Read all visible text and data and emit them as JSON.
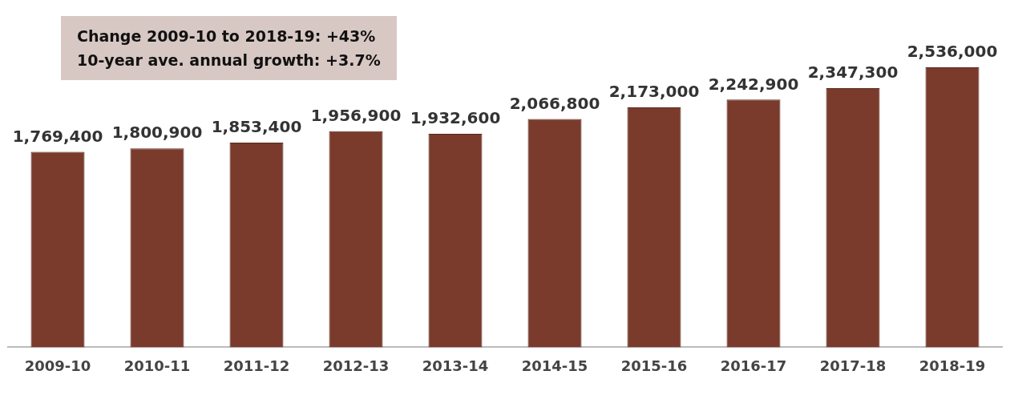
{
  "chart_data": {
    "type": "bar",
    "categories": [
      "2009-10",
      "2010-11",
      "2011-12",
      "2012-13",
      "2013-14",
      "2014-15",
      "2015-16",
      "2016-17",
      "2017-18",
      "2018-19"
    ],
    "values": [
      1769400,
      1800900,
      1853400,
      1956900,
      1932600,
      2066800,
      2173000,
      2242900,
      2347300,
      2536000
    ],
    "color": "#7a3b2c",
    "value_labels": [
      "1,769,400",
      "1,800,900",
      "1,853,400",
      "1,956,900",
      "1,932,600",
      "2,066,800",
      "2,173,000",
      "2,242,900",
      "2,347,300",
      "2,536,000"
    ],
    "grid": false,
    "legend": false,
    "annotations": [
      "Change 2009-10 to 2018-19: +43%",
      "10-year ave. annual growth: +3.7%"
    ]
  }
}
